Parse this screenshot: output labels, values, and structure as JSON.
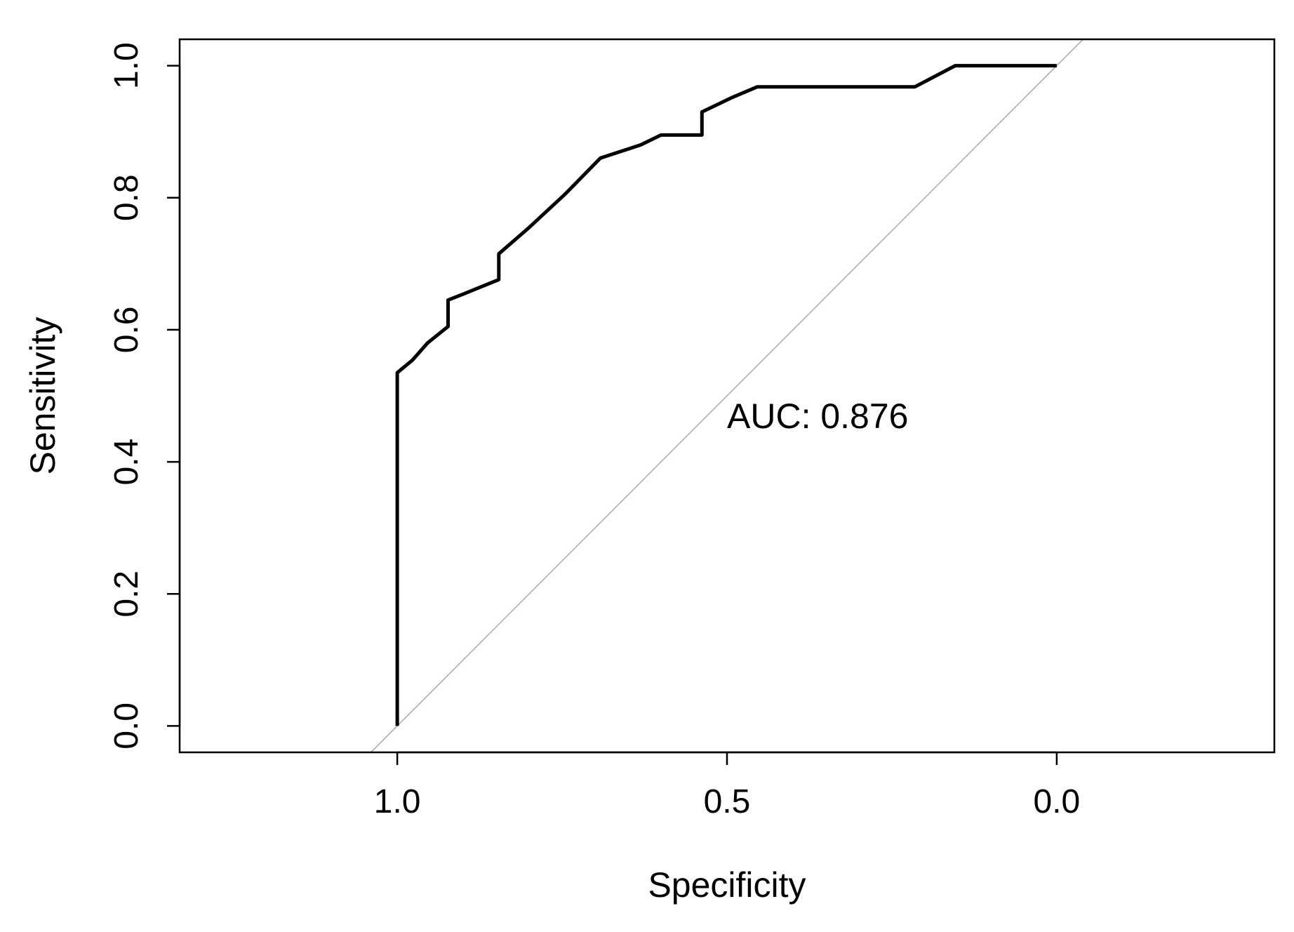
{
  "chart_data": {
    "type": "line",
    "xlabel": "Specificity",
    "ylabel": "Sensitivity",
    "x_reversed": true,
    "xlim": [
      1.33,
      -0.33
    ],
    "ylim": [
      -0.04,
      1.04
    ],
    "xticks": [
      1.0,
      0.5,
      0.0
    ],
    "xtick_labels": [
      "1.0",
      "0.5",
      "0.0"
    ],
    "yticks": [
      0.0,
      0.2,
      0.4,
      0.6,
      0.8,
      1.0
    ],
    "ytick_labels": [
      "0.0",
      "0.2",
      "0.4",
      "0.6",
      "0.8",
      "1.0"
    ],
    "grid": false,
    "annotation": {
      "text": "AUC: 0.876",
      "x": 0.5,
      "y": 0.47
    },
    "reference_line": {
      "from": [
        1.0,
        0.0
      ],
      "to": [
        0.0,
        1.0
      ],
      "color": "#aaaaaa"
    },
    "series": [
      {
        "color": "#000000",
        "points": [
          [
            1.0,
            0.0
          ],
          [
            1.0,
            0.535
          ],
          [
            0.977,
            0.554
          ],
          [
            0.954,
            0.58
          ],
          [
            0.923,
            0.605
          ],
          [
            0.923,
            0.645
          ],
          [
            0.9,
            0.654
          ],
          [
            0.846,
            0.676
          ],
          [
            0.846,
            0.715
          ],
          [
            0.8,
            0.755
          ],
          [
            0.746,
            0.805
          ],
          [
            0.692,
            0.86
          ],
          [
            0.631,
            0.88
          ],
          [
            0.6,
            0.895
          ],
          [
            0.538,
            0.895
          ],
          [
            0.538,
            0.93
          ],
          [
            0.492,
            0.952
          ],
          [
            0.454,
            0.968
          ],
          [
            0.346,
            0.968
          ],
          [
            0.215,
            0.968
          ],
          [
            0.154,
            1.0
          ],
          [
            0.0,
            1.0
          ]
        ]
      }
    ]
  }
}
